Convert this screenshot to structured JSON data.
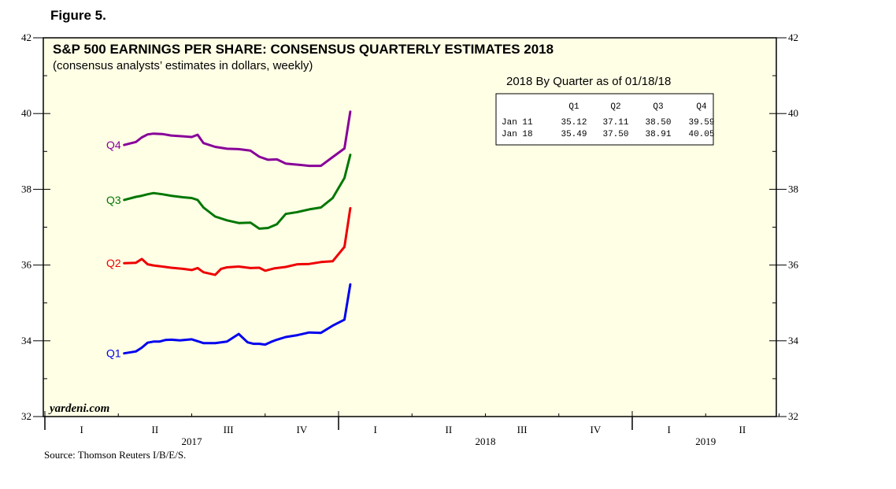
{
  "figure_label": "Figure 5.",
  "source": "Source: Thomson Reuters I/B/E/S.",
  "brand": "yardeni.com",
  "chart_data": {
    "type": "line",
    "title": "S&P 500 EARNINGS PER SHARE: CONSENSUS QUARTERLY ESTIMATES 2018",
    "subtitle": "(consensus analysts’ estimates in dollars, weekly)",
    "ylim": [
      32,
      42
    ],
    "yticks": [
      32,
      34,
      36,
      38,
      40,
      42
    ],
    "xlim": [
      2017.0,
      2019.5
    ],
    "quarter_labels": [
      {
        "label": "I",
        "x": 2017.125
      },
      {
        "label": "II",
        "x": 2017.375
      },
      {
        "label": "III",
        "x": 2017.625
      },
      {
        "label": "IV",
        "x": 2017.875
      },
      {
        "label": "I",
        "x": 2018.125
      },
      {
        "label": "II",
        "x": 2018.375
      },
      {
        "label": "III",
        "x": 2018.625
      },
      {
        "label": "IV",
        "x": 2018.875
      },
      {
        "label": "I",
        "x": 2019.125
      },
      {
        "label": "II",
        "x": 2019.375
      }
    ],
    "year_labels": [
      {
        "label": "2017",
        "x": 2017.5
      },
      {
        "label": "2018",
        "x": 2018.5
      },
      {
        "label": "2019",
        "x": 2019.25
      }
    ],
    "colors": {
      "Q1": "#0000ee",
      "Q2": "#ee0000",
      "Q3": "#007700",
      "Q4": "#880099",
      "plot_bg": "#ffffe6"
    },
    "series": [
      {
        "name": "Q1",
        "x": [
          2017.27,
          2017.31,
          2017.33,
          2017.35,
          2017.37,
          2017.39,
          2017.41,
          2017.43,
          2017.46,
          2017.5,
          2017.54,
          2017.58,
          2017.62,
          2017.66,
          2017.69,
          2017.71,
          2017.73,
          2017.75,
          2017.77,
          2017.79,
          2017.82,
          2017.86,
          2017.9,
          2017.94,
          2017.98,
          2018.02,
          2018.04
        ],
        "values": [
          33.67,
          33.72,
          33.82,
          33.95,
          33.98,
          33.98,
          34.02,
          34.03,
          34.01,
          34.04,
          33.94,
          33.94,
          33.98,
          34.18,
          33.96,
          33.92,
          33.92,
          33.9,
          33.97,
          34.03,
          34.1,
          34.15,
          34.22,
          34.21,
          34.4,
          34.56,
          35.49
        ]
      },
      {
        "name": "Q2",
        "x": [
          2017.27,
          2017.31,
          2017.33,
          2017.35,
          2017.37,
          2017.4,
          2017.43,
          2017.47,
          2017.5,
          2017.52,
          2017.54,
          2017.58,
          2017.6,
          2017.62,
          2017.66,
          2017.7,
          2017.73,
          2017.75,
          2017.78,
          2017.82,
          2017.86,
          2017.9,
          2017.94,
          2017.98,
          2018.02,
          2018.04
        ],
        "values": [
          36.05,
          36.06,
          36.16,
          36.02,
          35.99,
          35.96,
          35.93,
          35.9,
          35.87,
          35.92,
          35.81,
          35.74,
          35.9,
          35.94,
          35.96,
          35.92,
          35.93,
          35.85,
          35.91,
          35.95,
          36.02,
          36.03,
          36.08,
          36.1,
          36.48,
          37.5
        ]
      },
      {
        "name": "Q3",
        "x": [
          2017.27,
          2017.31,
          2017.33,
          2017.35,
          2017.37,
          2017.4,
          2017.43,
          2017.47,
          2017.5,
          2017.52,
          2017.54,
          2017.58,
          2017.62,
          2017.66,
          2017.7,
          2017.73,
          2017.76,
          2017.79,
          2017.82,
          2017.86,
          2017.9,
          2017.94,
          2017.98,
          2018.02,
          2018.04
        ],
        "values": [
          37.72,
          37.8,
          37.83,
          37.87,
          37.9,
          37.87,
          37.83,
          37.79,
          37.77,
          37.72,
          37.52,
          37.28,
          37.18,
          37.11,
          37.12,
          36.96,
          36.98,
          37.08,
          37.35,
          37.4,
          37.47,
          37.52,
          37.77,
          38.3,
          38.91
        ]
      },
      {
        "name": "Q4",
        "x": [
          2017.27,
          2017.31,
          2017.33,
          2017.35,
          2017.37,
          2017.4,
          2017.43,
          2017.47,
          2017.5,
          2017.52,
          2017.54,
          2017.58,
          2017.62,
          2017.66,
          2017.7,
          2017.73,
          2017.76,
          2017.79,
          2017.82,
          2017.86,
          2017.9,
          2017.94,
          2017.98,
          2018.02,
          2018.04
        ],
        "values": [
          39.17,
          39.25,
          39.37,
          39.45,
          39.47,
          39.46,
          39.42,
          39.4,
          39.38,
          39.44,
          39.22,
          39.12,
          39.07,
          39.06,
          39.02,
          38.86,
          38.78,
          38.79,
          38.68,
          38.65,
          38.62,
          38.62,
          38.85,
          39.08,
          40.05
        ]
      }
    ]
  },
  "quarter_table": {
    "heading": "2018 By Quarter as of 01/18/18",
    "columns": [
      "Q1",
      "Q2",
      "Q3",
      "Q4"
    ],
    "rows": [
      {
        "date": "Jan 11",
        "values": [
          "35.12",
          "37.11",
          "38.50",
          "39.59"
        ]
      },
      {
        "date": "Jan 18",
        "values": [
          "35.49",
          "37.50",
          "38.91",
          "40.05"
        ]
      }
    ]
  }
}
